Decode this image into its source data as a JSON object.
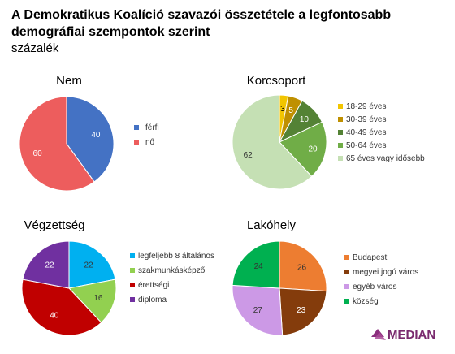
{
  "title": "A Demokratikus Koalíció szavazói összetétele a legfontosabb demográfiai szempontok szerint",
  "subtitle": "százalék",
  "brand": "MEDIAN",
  "chart_data": [
    {
      "type": "pie",
      "title": "Nem",
      "categories": [
        "férfi",
        "nő"
      ],
      "values": [
        40,
        60
      ],
      "colors": [
        "#4472C4",
        "#ED5D5D"
      ],
      "label_colors": [
        "#ffffff",
        "#ffffff"
      ]
    },
    {
      "type": "pie",
      "title": "Korcsoport",
      "categories": [
        "18-29 éves",
        "30-39 éves",
        "40-49 éves",
        "50-64 éves",
        "65 éves vagy idősebb"
      ],
      "values": [
        3,
        5,
        10,
        20,
        62
      ],
      "colors": [
        "#F2C500",
        "#BF9000",
        "#548235",
        "#70AD47",
        "#C5E0B4"
      ],
      "label_colors": [
        "#000000",
        "#ffffff",
        "#ffffff",
        "#ffffff",
        "#333333"
      ]
    },
    {
      "type": "pie",
      "title": "Végzettség",
      "categories": [
        "legfeljebb 8 általános",
        "szakmunkásképző",
        "érettségi",
        "diploma"
      ],
      "values": [
        22,
        16,
        40,
        22
      ],
      "colors": [
        "#00B0F0",
        "#92D050",
        "#C00000",
        "#7030A0"
      ],
      "label_colors": [
        "#333333",
        "#333333",
        "#ffffff",
        "#ffffff"
      ]
    },
    {
      "type": "pie",
      "title": "Lakóhely",
      "categories": [
        "Budapest",
        "megyei jogú város",
        "egyéb város",
        "község"
      ],
      "values": [
        26,
        23,
        27,
        24
      ],
      "colors": [
        "#ED7D31",
        "#843C0C",
        "#CC99E6",
        "#00B050"
      ],
      "label_colors": [
        "#333333",
        "#ffffff",
        "#333333",
        "#333333"
      ]
    }
  ]
}
